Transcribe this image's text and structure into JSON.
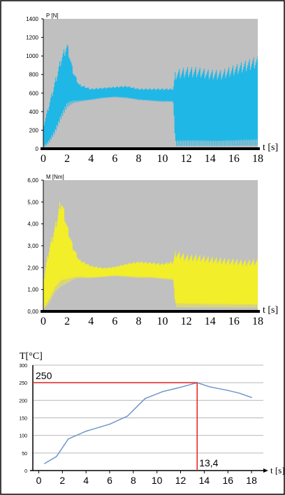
{
  "chart_data": [
    {
      "type": "area",
      "ylabel": "P [N]",
      "xlabel": "t [s]",
      "xlim": [
        0,
        18
      ],
      "ylim": [
        0,
        1400
      ],
      "xticks": [
        "0",
        "2",
        "4",
        "6",
        "8",
        "10",
        "12",
        "14",
        "16",
        "18"
      ],
      "yticks": [
        "0",
        "200",
        "400",
        "600",
        "800",
        "1000",
        "1200",
        "1400"
      ],
      "grid": false,
      "colors": {
        "plot_bg": "#c0c0c0",
        "series": "#1fb7e6"
      },
      "series": [
        {
          "style": "oscillating band",
          "x": [
            0,
            0.5,
            1,
            1.5,
            2,
            2.5,
            3,
            4,
            5,
            6,
            7,
            8,
            9,
            10,
            10.9,
            11.1,
            12,
            13,
            14,
            15,
            16,
            17,
            18
          ],
          "upper": [
            250,
            500,
            750,
            1000,
            1150,
            850,
            700,
            650,
            660,
            670,
            680,
            650,
            650,
            650,
            650,
            850,
            880,
            880,
            850,
            850,
            900,
            950,
            1000
          ],
          "lower": [
            0,
            50,
            150,
            300,
            420,
            480,
            500,
            520,
            540,
            550,
            540,
            520,
            510,
            500,
            500,
            0,
            0,
            0,
            0,
            0,
            0,
            0,
            0
          ]
        }
      ]
    },
    {
      "type": "area",
      "ylabel": "M [Nm]",
      "xlabel": "t [s]",
      "xlim": [
        0,
        18
      ],
      "ylim": [
        0,
        6
      ],
      "xticks": [
        "0",
        "2",
        "4",
        "6",
        "8",
        "10",
        "12",
        "14",
        "16",
        "18"
      ],
      "yticks": [
        "0,00",
        "1,00",
        "2,00",
        "3,00",
        "4,00",
        "5,00",
        "6,00"
      ],
      "grid": false,
      "colors": {
        "plot_bg": "#c0c0c0",
        "series": "#f2ee2a"
      },
      "series": [
        {
          "style": "oscillating band",
          "x": [
            0,
            0.5,
            1,
            1.5,
            2,
            2.5,
            3,
            4,
            5,
            6,
            7,
            8,
            9,
            10,
            10.9,
            11.1,
            12,
            13,
            14,
            15,
            16,
            17,
            18
          ],
          "upper": [
            1.5,
            3.0,
            4.0,
            5.3,
            4.0,
            3.0,
            2.4,
            2.1,
            2.0,
            2.05,
            2.2,
            2.3,
            2.25,
            2.2,
            2.3,
            2.8,
            2.6,
            2.6,
            2.5,
            2.45,
            2.4,
            2.35,
            2.4
          ],
          "lower": [
            0,
            0.3,
            0.8,
            1.0,
            1.2,
            1.4,
            1.5,
            1.5,
            1.55,
            1.6,
            1.55,
            1.5,
            1.5,
            1.45,
            1.4,
            0.1,
            0.1,
            0.1,
            0.1,
            0.1,
            0.1,
            0.1,
            0.1
          ]
        }
      ]
    },
    {
      "type": "line",
      "ylabel": "T[°C]",
      "xlabel": "t [s]",
      "xlim": [
        -0.5,
        19
      ],
      "ylim": [
        0,
        300
      ],
      "xticks": [
        "0",
        "2",
        "4",
        "6",
        "8",
        "10",
        "12",
        "14",
        "16",
        "18"
      ],
      "yticks": [
        "0",
        "50",
        "100",
        "150",
        "200",
        "250",
        "300"
      ],
      "grid": true,
      "colors": {
        "line": "#6f96c9",
        "marker": "#e02020"
      },
      "series": [
        {
          "x": [
            0.5,
            1.5,
            2.5,
            4,
            6,
            7.5,
            9,
            10.5,
            12,
            13.4,
            14.5,
            16,
            17,
            18
          ],
          "y": [
            20,
            40,
            90,
            112,
            132,
            155,
            205,
            225,
            237,
            250,
            238,
            228,
            220,
            208
          ]
        }
      ],
      "annotations": {
        "h_line_label": "250",
        "h_line_value": 250,
        "v_line_label": "13,4",
        "v_line_value": 13.4
      }
    }
  ]
}
